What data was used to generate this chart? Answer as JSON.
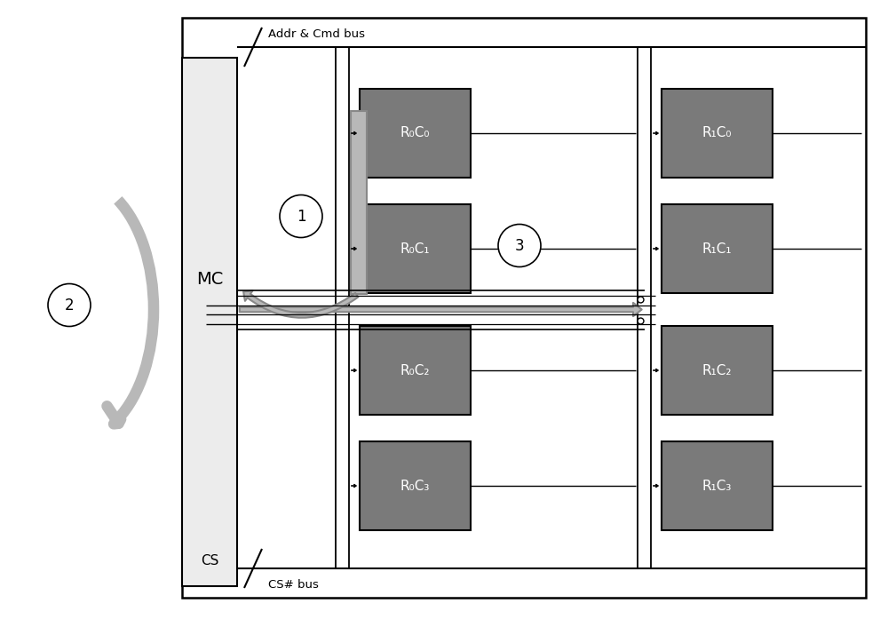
{
  "bg_color": "#ffffff",
  "box_color": "#7a7a7a",
  "box_edge": "#000000",
  "mc_color": "#ececec",
  "mc_edge": "#000000",
  "gray_arrow": "#b8b8b8",
  "gray_arrow_edge": "#888888",
  "line_color": "#000000",
  "rank0_labels": [
    "R₀C₀",
    "R₀C₁",
    "R₀C₂",
    "R₀C₃"
  ],
  "rank1_labels": [
    "R₁C₀",
    "R₁C₁",
    "R₁C₂",
    "R₁C₃"
  ],
  "addr_label": "Addr & Cmd bus",
  "cs_bus_label": "CS# bus",
  "mc_label": "MC",
  "cs_label": "CS",
  "label1": "1",
  "label2": "2",
  "label3": "3"
}
